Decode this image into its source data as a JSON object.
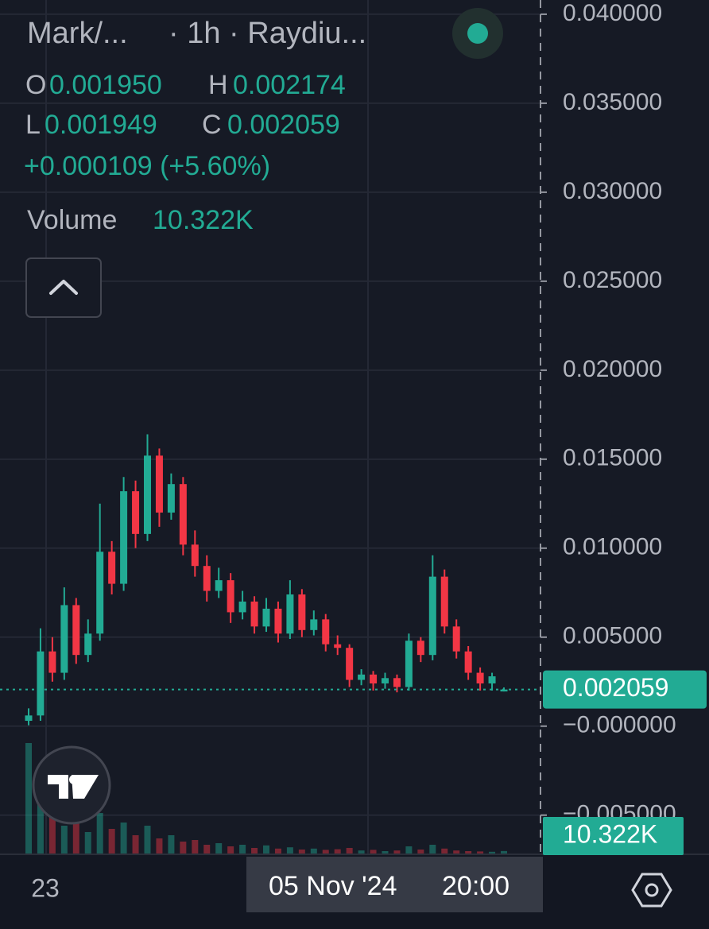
{
  "legend": {
    "symbol": "Mark/...",
    "interval": "· 1h · Raydiu...",
    "o": "O",
    "open": "0.001950",
    "h": "H",
    "high": "0.002174",
    "l": "L",
    "low": "0.001949",
    "c": "C",
    "close": "0.002059",
    "change": "+0.000109 (+5.60%)",
    "volume_label": "Volume"
  },
  "crosshair": {
    "date": "05 Nov '24",
    "time": "20:00"
  },
  "chart_data": {
    "type": "candlestick",
    "categories": [
      "23",
      null,
      null,
      null,
      null,
      null,
      null,
      null,
      null,
      null,
      null,
      null,
      null,
      null,
      null,
      null,
      null,
      null,
      null,
      null,
      null,
      null,
      null,
      null,
      null,
      null,
      null,
      null,
      null,
      null,
      null,
      null,
      null,
      null,
      null,
      null,
      null,
      null,
      null,
      null,
      null
    ],
    "open": [
      0.0003,
      0.0006,
      0.0042,
      0.003,
      0.0068,
      0.004,
      0.0052,
      0.0098,
      0.008,
      0.0132,
      0.0108,
      0.0152,
      0.012,
      0.0136,
      0.0102,
      0.009,
      0.0076,
      0.0082,
      0.0064,
      0.007,
      0.0056,
      0.0066,
      0.0052,
      0.0074,
      0.0054,
      0.006,
      0.0046,
      0.0044,
      0.0026,
      0.0029,
      0.0024,
      0.0027,
      0.0022,
      0.0048,
      0.004,
      0.0084,
      0.0056,
      0.0042,
      0.003,
      0.0024,
      0.00195
    ],
    "high": [
      0.001,
      0.0055,
      0.005,
      0.0078,
      0.0072,
      0.006,
      0.0125,
      0.0104,
      0.014,
      0.0138,
      0.0164,
      0.0156,
      0.0142,
      0.014,
      0.011,
      0.0096,
      0.0089,
      0.0086,
      0.0076,
      0.0073,
      0.0072,
      0.007,
      0.0082,
      0.0077,
      0.0065,
      0.0063,
      0.0051,
      0.0046,
      0.0032,
      0.0031,
      0.003,
      0.0029,
      0.0052,
      0.005,
      0.0096,
      0.0088,
      0.006,
      0.0045,
      0.0033,
      0.003,
      0.002174
    ],
    "low": [
      5e-05,
      0.0003,
      0.0025,
      0.0026,
      0.0035,
      0.0036,
      0.0048,
      0.0074,
      0.0076,
      0.01,
      0.0104,
      0.0112,
      0.0116,
      0.0096,
      0.0084,
      0.007,
      0.0072,
      0.0058,
      0.006,
      0.0052,
      0.0053,
      0.0047,
      0.0049,
      0.005,
      0.0051,
      0.0042,
      0.004,
      0.0022,
      0.0023,
      0.002,
      0.0021,
      0.0019,
      0.002,
      0.0036,
      0.0037,
      0.0052,
      0.0038,
      0.0026,
      0.002,
      0.002,
      0.001949
    ],
    "close": [
      0.0006,
      0.0042,
      0.003,
      0.0068,
      0.004,
      0.0052,
      0.0098,
      0.008,
      0.0132,
      0.0108,
      0.0152,
      0.012,
      0.0136,
      0.0102,
      0.009,
      0.0076,
      0.0082,
      0.0064,
      0.007,
      0.0056,
      0.0066,
      0.0052,
      0.0074,
      0.0054,
      0.006,
      0.0046,
      0.0044,
      0.0026,
      0.0029,
      0.0024,
      0.0027,
      0.0022,
      0.0048,
      0.004,
      0.0084,
      0.0056,
      0.0042,
      0.003,
      0.0024,
      0.0028,
      0.002059
    ],
    "volume": [
      350000,
      180000,
      120000,
      90000,
      110000,
      70000,
      130000,
      80000,
      100000,
      60000,
      90000,
      50000,
      60000,
      40000,
      45000,
      30000,
      35000,
      25000,
      30000,
      20000,
      28000,
      18000,
      22000,
      15000,
      18000,
      14000,
      16000,
      20000,
      12000,
      14000,
      10000,
      12000,
      25000,
      15000,
      30000,
      18000,
      12000,
      10000,
      9000,
      8000,
      10322
    ],
    "volume_labels": [
      null,
      null,
      null,
      null,
      null,
      null,
      null,
      null,
      null,
      null,
      null,
      null,
      null,
      null,
      null,
      null,
      null,
      null,
      null,
      null,
      null,
      null,
      null,
      null,
      null,
      null,
      null,
      null,
      null,
      null,
      null,
      null,
      null,
      null,
      null,
      null,
      null,
      null,
      null,
      null,
      "10.322K"
    ],
    "vlim": [
      0,
      400000
    ],
    "up_color": "#22ab94",
    "down_color": "#f23645",
    "ylim": [
      -0.0072,
      0.0408
    ],
    "yticks": [
      {
        "value": 0.04,
        "label": "0.040000"
      },
      {
        "value": 0.035,
        "label": "0.035000"
      },
      {
        "value": 0.03,
        "label": "0.030000"
      },
      {
        "value": 0.025,
        "label": "0.025000"
      },
      {
        "value": 0.02,
        "label": "0.020000"
      },
      {
        "value": 0.015,
        "label": "0.015000"
      },
      {
        "value": 0.01,
        "label": "0.010000"
      },
      {
        "value": 0.005,
        "label": "0.005000"
      },
      {
        "value": 0,
        "label": "−0.000000"
      },
      {
        "value": -0.005,
        "label": "−0.005000"
      }
    ],
    "grid": true
  }
}
